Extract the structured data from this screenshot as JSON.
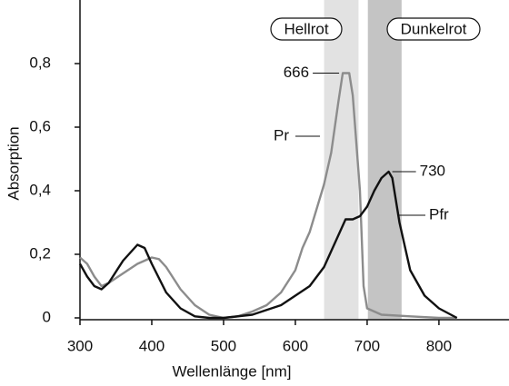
{
  "chart_data": {
    "type": "line",
    "x_label": "Wellenlänge [nm]",
    "y_label": "Absorption",
    "xlim": [
      300,
      890
    ],
    "xticks": [
      300,
      400,
      500,
      600,
      700,
      800
    ],
    "ylim": [
      0,
      1.0
    ],
    "yticks": [
      0,
      {
        "value": 0.2,
        "label": "0,2"
      },
      {
        "value": 0.4,
        "label": "0,4"
      },
      {
        "value": 0.6,
        "label": "0,6"
      },
      {
        "value": 0.8,
        "label": "0,8"
      }
    ],
    "bands": [
      {
        "label": "Hellrot",
        "range": [
          640,
          688
        ],
        "color": "#e2e2e2"
      },
      {
        "label": "Dunkelrot",
        "range": [
          701,
          748
        ],
        "color": "#c4c4c4"
      }
    ],
    "series": [
      {
        "name": "Pr",
        "color": "#8c8c8c",
        "x": [
          300,
          310,
          320,
          330,
          340,
          360,
          380,
          400,
          410,
          420,
          440,
          460,
          480,
          500,
          520,
          540,
          560,
          580,
          600,
          610,
          620,
          640,
          650,
          660,
          666,
          675,
          680,
          690,
          695,
          700,
          720,
          760,
          800,
          825
        ],
        "values": [
          0.19,
          0.17,
          0.13,
          0.1,
          0.11,
          0.14,
          0.17,
          0.19,
          0.185,
          0.16,
          0.09,
          0.04,
          0.01,
          0,
          0.005,
          0.02,
          0.04,
          0.08,
          0.15,
          0.22,
          0.27,
          0.42,
          0.52,
          0.68,
          0.77,
          0.77,
          0.7,
          0.4,
          0.1,
          0.03,
          0.01,
          0.005,
          0,
          0
        ]
      },
      {
        "name": "Pfr",
        "color": "#111111",
        "x": [
          300,
          310,
          320,
          330,
          340,
          360,
          380,
          390,
          400,
          420,
          440,
          460,
          480,
          500,
          540,
          580,
          620,
          640,
          660,
          670,
          680,
          690,
          700,
          710,
          720,
          730,
          735,
          745,
          760,
          780,
          800,
          825
        ],
        "values": [
          0.17,
          0.13,
          0.1,
          0.09,
          0.11,
          0.18,
          0.23,
          0.22,
          0.17,
          0.08,
          0.03,
          0.005,
          0,
          0,
          0.01,
          0.04,
          0.1,
          0.16,
          0.26,
          0.31,
          0.31,
          0.32,
          0.35,
          0.4,
          0.44,
          0.46,
          0.44,
          0.3,
          0.15,
          0.07,
          0.03,
          0
        ]
      }
    ],
    "annotations": [
      {
        "text": "666",
        "x": 666,
        "y": 0.77
      },
      {
        "text": "730",
        "x": 730,
        "y": 0.46
      }
    ]
  }
}
